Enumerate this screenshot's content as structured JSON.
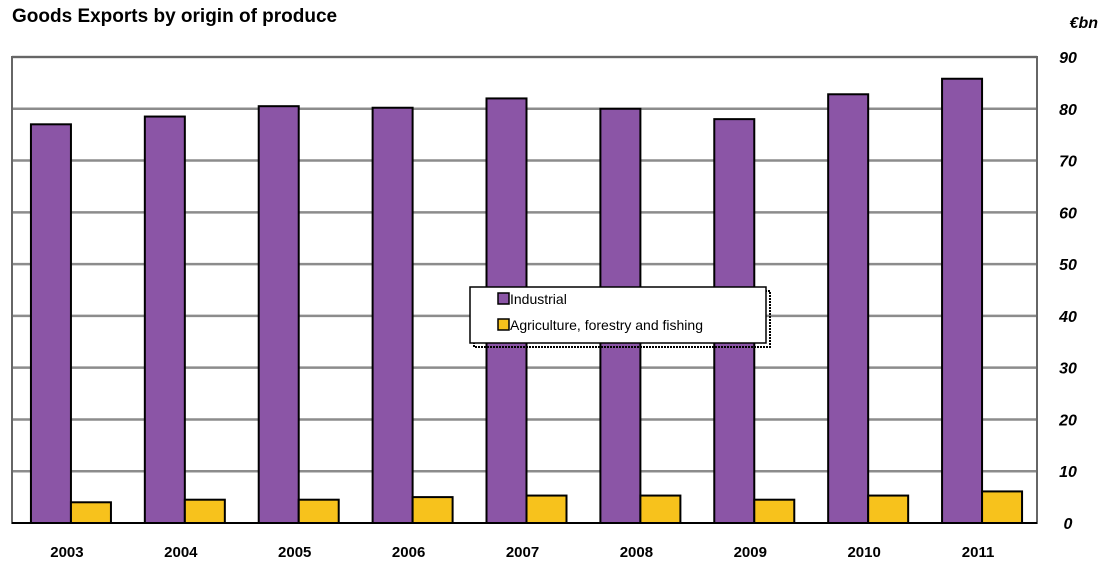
{
  "chart_data": {
    "type": "bar",
    "title": "Goods Exports by origin of produce",
    "unit_label": "€bn",
    "categories": [
      "2003",
      "2004",
      "2005",
      "2006",
      "2007",
      "2008",
      "2009",
      "2010",
      "2011"
    ],
    "series": [
      {
        "name": "Industrial",
        "color": "#8b55a6",
        "values": [
          77,
          78.5,
          80.5,
          80.2,
          82,
          80,
          78,
          82.8,
          85.8
        ]
      },
      {
        "name": "Agriculture, forestry and fishing",
        "color": "#f7c21c",
        "values": [
          4,
          4.5,
          4.5,
          5,
          5.3,
          5.3,
          4.5,
          5.3,
          6.1
        ]
      }
    ],
    "ylim": [
      0,
      90
    ],
    "yticks": [
      0,
      10,
      20,
      30,
      40,
      50,
      60,
      70,
      80,
      90
    ],
    "grid": true,
    "legend_position": "center",
    "y_axis_side": "right"
  }
}
